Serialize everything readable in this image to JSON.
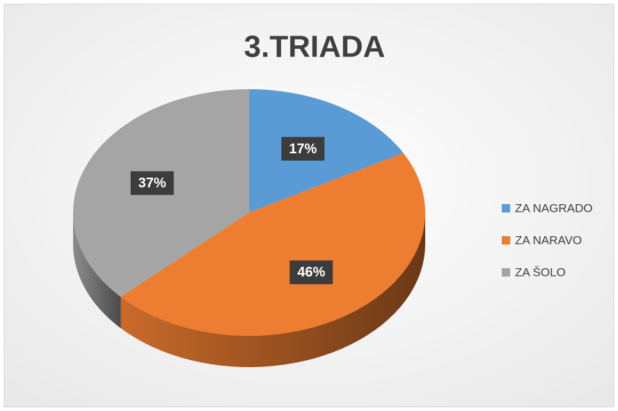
{
  "chart_data": {
    "type": "pie",
    "title": "3.TRIADA",
    "categories": [
      "ZA NAGRADO",
      "ZA NARAVO",
      "ZA ŠOLO"
    ],
    "values": [
      17,
      46,
      37
    ],
    "value_labels": [
      "17%",
      "46%",
      "37%"
    ],
    "colors": [
      "#5b9bd5",
      "#ed7d31",
      "#a5a5a5"
    ],
    "legend": "right"
  }
}
